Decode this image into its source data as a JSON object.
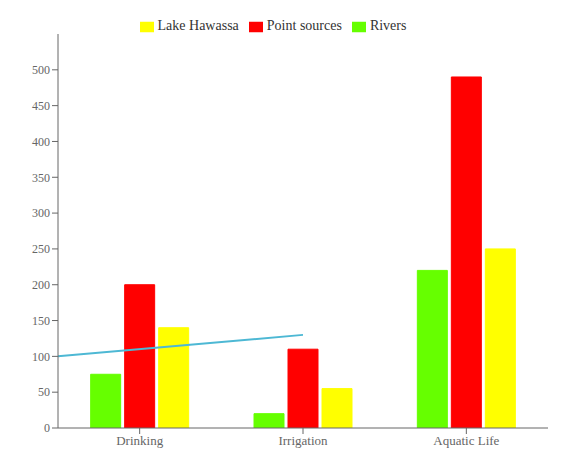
{
  "chart_data": {
    "type": "bar",
    "categories": [
      "Drinking",
      "Irrigation",
      "Aquatic Life"
    ],
    "series": [
      {
        "name": "Rivers",
        "color": "#66ff00",
        "values": [
          75,
          20,
          220
        ]
      },
      {
        "name": "Point sources",
        "color": "#ff0000",
        "values": [
          200,
          110,
          490
        ]
      },
      {
        "name": "Lake Hawassa",
        "color": "#ffff00",
        "values": [
          140,
          55,
          250
        ]
      }
    ],
    "trendline": {
      "start": 100,
      "end": 130,
      "color": "#4db8d4"
    },
    "ylim": [
      0,
      550
    ],
    "yticks": [
      0,
      50,
      100,
      150,
      200,
      250,
      300,
      350,
      400,
      450,
      500
    ],
    "grid": false,
    "legend": "top"
  }
}
